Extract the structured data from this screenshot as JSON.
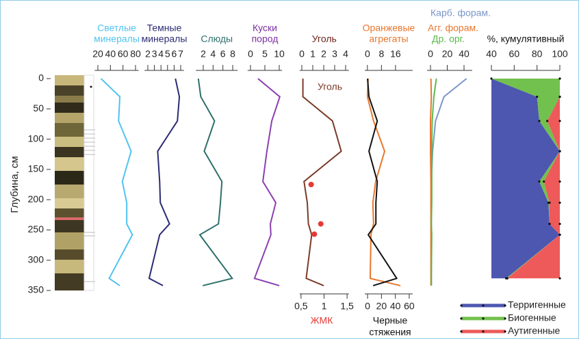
{
  "chart_data": [
    {
      "type": "line",
      "title": [
        "Светлые",
        "минералы"
      ],
      "title_color": "#4fc3f0",
      "ylabel": "Глубина, см",
      "ylim": [
        0,
        350
      ],
      "yticks": [
        0,
        50,
        100,
        150,
        200,
        250,
        300,
        350
      ],
      "xlim": [
        15,
        85
      ],
      "xticks": [
        20,
        40,
        60,
        80
      ],
      "y": [
        0,
        30,
        70,
        120,
        170,
        205,
        240,
        258,
        330,
        342
      ],
      "series": [
        {
          "color": "#4fc3f0",
          "values": [
            25,
            55,
            53,
            73,
            59,
            66,
            66,
            75,
            38,
            55
          ]
        }
      ]
    },
    {
      "type": "line",
      "title": [
        "Темные",
        "минералы"
      ],
      "title_color": "#2b2a72",
      "xlim": [
        1.5,
        7.5
      ],
      "xticks": [
        2,
        3,
        4,
        5,
        6,
        7
      ],
      "y": [
        0,
        30,
        70,
        120,
        170,
        205,
        240,
        258,
        330,
        342
      ],
      "series": [
        {
          "color": "#2b2a72",
          "values": [
            6.2,
            6.8,
            6.5,
            3.5,
            3.8,
            3.9,
            5.3,
            3.8,
            2.2,
            4.3
          ]
        }
      ]
    },
    {
      "type": "line",
      "title": "Слюды",
      "title_color": "#2d6f6a",
      "xlim": [
        0.5,
        9
      ],
      "xticks": [
        2,
        4,
        6,
        8
      ],
      "y": [
        0,
        30,
        70,
        120,
        170,
        205,
        240,
        258,
        330,
        342
      ],
      "series": [
        {
          "color": "#2d6f6a",
          "values": [
            1.0,
            1.5,
            4.3,
            2.2,
            5.8,
            5.5,
            5.1,
            1.3,
            7.9,
            1.9
          ]
        }
      ]
    },
    {
      "type": "line",
      "title": [
        "Куски",
        "пород"
      ],
      "title_color": "#7b2fa0",
      "xlim": [
        -1,
        11
      ],
      "xticks": [
        0,
        5,
        10
      ],
      "y": [
        0,
        30,
        70,
        120,
        170,
        205,
        240,
        258,
        330,
        342
      ],
      "series": [
        {
          "color": "#8a3fb0",
          "values": [
            2.6,
            10.2,
            7.4,
            5.7,
            4.3,
            8.8,
            6.9,
            7.1,
            1.4,
            10
          ]
        }
      ]
    },
    {
      "type": "line",
      "title": "Уголь",
      "title_color": "#6b2318",
      "xlim": [
        -0.2,
        4.3
      ],
      "xticks": [
        0,
        1,
        2,
        3,
        4
      ],
      "x2lim": [
        0.47,
        1.54
      ],
      "x2ticks": [
        {
          "value": 0.5,
          "label": "0,5"
        },
        1,
        {
          "value": 1.5,
          "label": "1,5"
        }
      ],
      "y": [
        0,
        30,
        70,
        120,
        170,
        205,
        240,
        258,
        330,
        342
      ],
      "series": [
        {
          "name": "Уголь",
          "color": "#7a3a28",
          "values": [
            0.1,
            0.1,
            2.8,
            3.6,
            0.2,
            0.5,
            0.6,
            0.9,
            0.4,
            2.0
          ]
        },
        {
          "name": "ЖМК",
          "color": "#e53935",
          "axis": "x2",
          "marker": "dot",
          "y": [
            175,
            240,
            257
          ],
          "values": [
            0.72,
            0.93,
            0.79
          ]
        }
      ]
    },
    {
      "type": "line",
      "title": [
        "Оранжевые",
        "агрегаты"
      ],
      "title_color": "#e8762c",
      "xlim": [
        -1.5,
        25.8
      ],
      "xticks": [
        0,
        8,
        16
      ],
      "x2lim": [
        -4,
        65
      ],
      "x2ticks": [
        0,
        20,
        40,
        60
      ],
      "y": [
        0,
        30,
        70,
        120,
        170,
        205,
        240,
        258,
        330,
        342
      ],
      "series": [
        {
          "color": "#e8762c",
          "values": [
            0.4,
            0,
            3.5,
            9.8,
            4.7,
            3.1,
            3.5,
            2,
            1.6,
            18.8
          ]
        },
        {
          "name": [
            "Черные",
            "стяжения"
          ],
          "color": "#111111",
          "axis": "x2",
          "values": [
            0,
            2,
            14,
            2,
            14,
            12,
            12,
            1,
            42,
            8
          ]
        }
      ]
    },
    {
      "type": "line",
      "xlim": [
        -4.1,
        49.8
      ],
      "xticks": [
        0,
        20,
        40
      ],
      "y": [
        0,
        30,
        70,
        120,
        170,
        205,
        240,
        258,
        330,
        342
      ],
      "series": [
        {
          "name": "Карб. форам.",
          "color": "#7b96c8",
          "values": [
            43,
            16,
            6,
            2.5,
            1,
            1,
            1,
            1,
            1,
            1
          ]
        },
        {
          "name": "Агг. форам.",
          "color": "#e8762c",
          "values": [
            0.5,
            1,
            0,
            0,
            0.5,
            0.5,
            0.5,
            0.5,
            0.5,
            0.5
          ]
        },
        {
          "name": "Др. орг.",
          "color": "#5cb84a",
          "values": [
            7,
            4,
            2,
            1.5,
            1.5,
            1.5,
            1,
            1.5,
            1,
            1
          ]
        }
      ]
    },
    {
      "type": "stacked_area",
      "title": "%, кумулятивный",
      "title_color": "#111111",
      "xlim": [
        40,
        100
      ],
      "xticks": [
        40,
        60,
        80,
        100
      ],
      "legend": "lower right",
      "y": [
        0,
        30,
        70,
        120,
        170,
        205,
        240,
        258,
        330
      ],
      "series": [
        {
          "name": "Терригенные",
          "color": "#4d57b0",
          "values": [
            40,
            80,
            82,
            100,
            82,
            90,
            91,
            100,
            53
          ]
        },
        {
          "name": "Биогенные",
          "color": "#72c04e",
          "values": [
            60,
            20,
            7,
            0,
            4,
            1,
            0,
            0,
            1
          ]
        },
        {
          "name": "Аутигенные",
          "color": "#ee5a5a",
          "values": [
            0,
            0,
            11,
            0,
            14,
            9,
            9,
            0,
            46
          ]
        }
      ]
    }
  ]
}
